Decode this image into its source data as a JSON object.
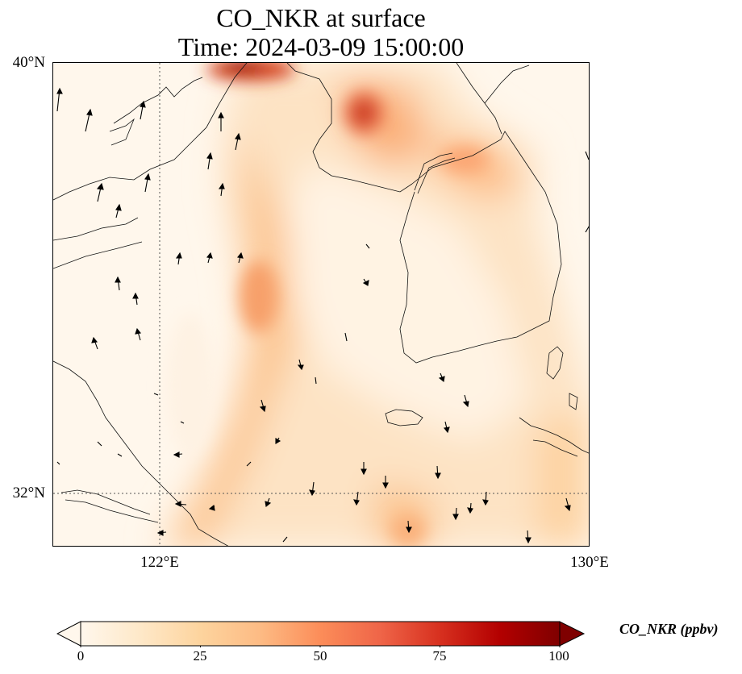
{
  "title": {
    "line1": "CO_NKR at surface",
    "line2": "Time: 2024-03-09 15:00:00"
  },
  "axes": {
    "lat_labels": [
      "40°N",
      "32°N"
    ],
    "lon_labels": [
      "122°E",
      "130°E"
    ],
    "lat_range": [
      31,
      40
    ],
    "lon_range": [
      120,
      130
    ]
  },
  "colorbar": {
    "title": "CO_NKR (ppbv)",
    "ticks": [
      "0",
      "25",
      "50",
      "75",
      "100"
    ],
    "range": [
      0,
      100
    ],
    "extend": "both",
    "colormap_stops": [
      "#fff7ec",
      "#fee8c8",
      "#fdd49e",
      "#fdbb84",
      "#fc8d59",
      "#ef6548",
      "#d7301f",
      "#b30000",
      "#7f0000"
    ]
  },
  "layers": [
    "CO concentration field",
    "wind vectors",
    "coastlines",
    "gridlines"
  ]
}
